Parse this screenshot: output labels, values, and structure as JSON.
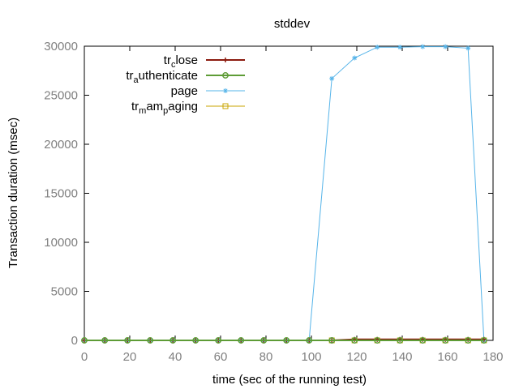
{
  "chart_data": {
    "type": "line",
    "title": "stddev",
    "xlabel": "time (sec of the running test)",
    "ylabel": "Transaction duration (msec)",
    "xlim": [
      0,
      180
    ],
    "ylim": [
      0,
      30000
    ],
    "xticks": [
      0,
      20,
      40,
      60,
      80,
      100,
      120,
      140,
      160,
      180
    ],
    "yticks": [
      0,
      5000,
      10000,
      15000,
      20000,
      25000,
      30000
    ],
    "xtick_labels": [
      "0",
      "20",
      "40",
      "60",
      "80",
      "100",
      "120",
      "140",
      "160",
      "180"
    ],
    "ytick_labels": [
      "0",
      "5000",
      "10000",
      "15000",
      "20000",
      "25000",
      "30000"
    ],
    "grid": false,
    "legend_position": "top-left",
    "series": [
      {
        "name": "tr_close",
        "legend_parts": [
          {
            "t": "tr",
            "sub": false
          },
          {
            "t": "c",
            "sub": true
          },
          {
            "t": "lose",
            "sub": false
          }
        ],
        "color": "#8b1a0e",
        "marker": "plus",
        "x": [
          0,
          9,
          19,
          29,
          39,
          49,
          59,
          69,
          79,
          89,
          99,
          109,
          119,
          129,
          139,
          149,
          159,
          169,
          176
        ],
        "y": [
          0,
          0,
          0,
          0,
          0,
          0,
          0,
          0,
          0,
          0,
          0,
          0,
          100,
          100,
          100,
          100,
          100,
          100,
          100
        ]
      },
      {
        "name": "tr_authenticate",
        "legend_parts": [
          {
            "t": "tr",
            "sub": false
          },
          {
            "t": "a",
            "sub": true
          },
          {
            "t": "uthenticate",
            "sub": false
          }
        ],
        "color": "#5e9c36",
        "marker": "circle",
        "x": [
          0,
          9,
          19,
          29,
          39,
          49,
          59,
          69,
          79,
          89,
          99,
          109,
          119,
          129,
          139,
          149,
          159,
          169,
          176
        ],
        "y": [
          0,
          0,
          0,
          0,
          0,
          0,
          0,
          0,
          0,
          0,
          0,
          0,
          0,
          0,
          0,
          0,
          0,
          0,
          0
        ]
      },
      {
        "name": "page",
        "legend_parts": [
          {
            "t": "page",
            "sub": false
          }
        ],
        "color": "#56b4e9",
        "marker": "star",
        "x": [
          0,
          9,
          19,
          29,
          39,
          49,
          59,
          69,
          79,
          89,
          99,
          109,
          119,
          129,
          139,
          149,
          159,
          169,
          176
        ],
        "y": [
          0,
          0,
          0,
          0,
          0,
          0,
          0,
          0,
          0,
          0,
          0,
          26700,
          28800,
          29900,
          29900,
          29950,
          29950,
          29800,
          0
        ]
      },
      {
        "name": "tr_mam_paging",
        "legend_parts": [
          {
            "t": "tr",
            "sub": false
          },
          {
            "t": "m",
            "sub": true
          },
          {
            "t": "am",
            "sub": false
          },
          {
            "t": "p",
            "sub": true
          },
          {
            "t": "aging",
            "sub": false
          }
        ],
        "color": "#c8a400",
        "marker": "square",
        "x": [
          109,
          119,
          129,
          139,
          149,
          159,
          169,
          176
        ],
        "y": [
          0,
          0,
          0,
          0,
          0,
          0,
          0,
          0
        ]
      }
    ]
  }
}
